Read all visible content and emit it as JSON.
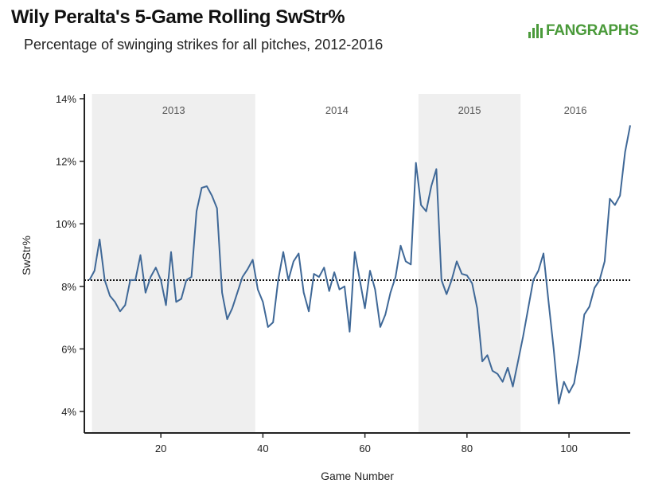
{
  "header": {
    "title": "Wily Peralta's 5-Game Rolling SwStr%",
    "subtitle": "Percentage of swinging strikes for all pitches, 2012-2016",
    "logo_text": "FANGRAPHS"
  },
  "chart_data": {
    "type": "line",
    "title": "Wily Peralta's 5-Game Rolling SwStr%",
    "subtitle": "Percentage of swinging strikes for all pitches, 2012-2016",
    "xlabel": "Game Number",
    "ylabel": "SwStr%",
    "xlim": [
      5,
      112
    ],
    "ylim": [
      3.5,
      14
    ],
    "x_ticks": [
      20,
      40,
      60,
      80,
      100
    ],
    "y_ticks": [
      4,
      6,
      8,
      10,
      12,
      14
    ],
    "y_tick_labels": [
      "4%",
      "6%",
      "8%",
      "10%",
      "12%",
      "14%"
    ],
    "reference_line": {
      "y": 8.2,
      "style": "dotted"
    },
    "seasons": [
      {
        "label": "2013",
        "start": 6.5,
        "end": 38.5,
        "shaded": true
      },
      {
        "label": "2014",
        "start": 38.5,
        "end": 70.5,
        "shaded": false
      },
      {
        "label": "2015",
        "start": 70.5,
        "end": 90.5,
        "shaded": true
      },
      {
        "label": "2016",
        "start": 90.5,
        "end": 112,
        "shaded": false
      }
    ],
    "colors": {
      "line": "#3f6897",
      "band": "#efefef",
      "axis": "#222222"
    },
    "series": [
      {
        "x": [
          6,
          7,
          8,
          9,
          10,
          11,
          12,
          13,
          14,
          15,
          16,
          17,
          18,
          19,
          20,
          21,
          22,
          23,
          24,
          25,
          26,
          27,
          28,
          29,
          30,
          31,
          32,
          33,
          34,
          35,
          36,
          37,
          38,
          39,
          40,
          41,
          42,
          43,
          44,
          45,
          46,
          47,
          48,
          49,
          50,
          51,
          52,
          53,
          54,
          55,
          56,
          57,
          58,
          59,
          60,
          61,
          62,
          63,
          64,
          65,
          66,
          67,
          68,
          69,
          70,
          71,
          72,
          73,
          74,
          75,
          76,
          77,
          78,
          79,
          80,
          81,
          82,
          83,
          84,
          85,
          86,
          87,
          88,
          89,
          90,
          91,
          92,
          93,
          94,
          95,
          96,
          97,
          98,
          99,
          100,
          101,
          102,
          103,
          104,
          105,
          106,
          107,
          108,
          109,
          110,
          111,
          112
        ],
        "y": [
          8.2,
          8.5,
          9.5,
          8.2,
          7.7,
          7.5,
          7.2,
          7.4,
          8.2,
          8.2,
          9.0,
          7.8,
          8.3,
          8.6,
          8.2,
          7.4,
          9.1,
          7.5,
          7.6,
          8.2,
          8.3,
          10.4,
          11.15,
          11.2,
          10.9,
          10.5,
          7.8,
          6.95,
          7.3,
          7.8,
          8.3,
          8.55,
          8.85,
          7.9,
          7.5,
          6.7,
          6.85,
          8.2,
          9.1,
          8.2,
          8.8,
          9.05,
          7.8,
          7.2,
          8.4,
          8.3,
          8.6,
          7.85,
          8.45,
          7.9,
          8.0,
          6.55,
          9.1,
          8.2,
          7.3,
          8.5,
          7.9,
          6.7,
          7.1,
          7.8,
          8.3,
          9.3,
          8.8,
          8.7,
          11.95,
          10.6,
          10.4,
          11.2,
          11.75,
          8.2,
          7.75,
          8.2,
          8.8,
          8.4,
          8.35,
          8.1,
          7.3,
          5.6,
          5.8,
          5.3,
          5.2,
          4.95,
          5.4,
          4.8,
          5.6,
          6.4,
          7.3,
          8.2,
          8.5,
          9.05,
          7.5,
          6.0,
          4.25,
          4.95,
          4.6,
          4.9,
          5.85,
          7.1,
          7.35,
          7.95,
          8.2,
          8.8,
          10.8,
          10.6,
          10.9,
          12.3,
          13.15
        ]
      }
    ]
  }
}
